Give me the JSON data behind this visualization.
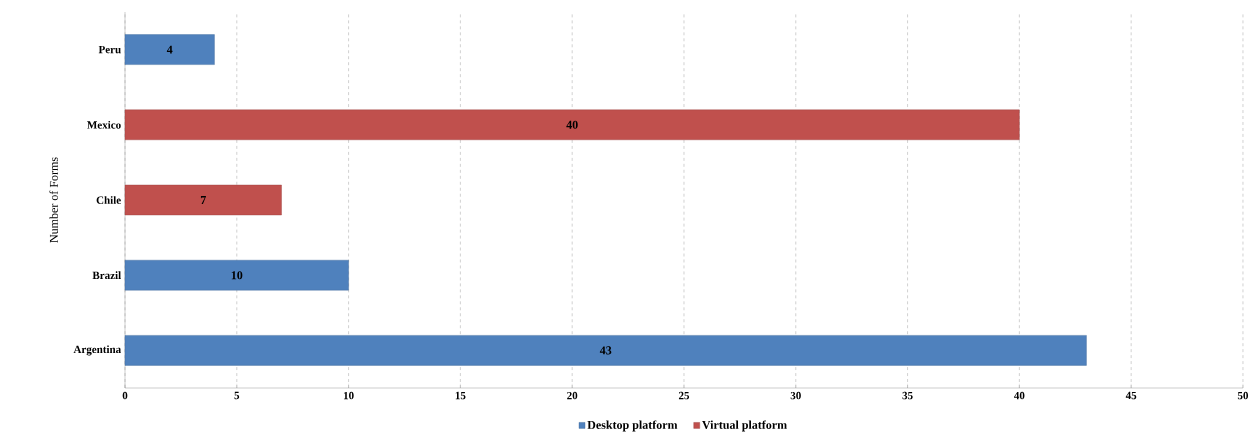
{
  "chart_data": {
    "type": "bar",
    "orientation": "horizontal",
    "ylabel": "Number of Forms",
    "categories": [
      "Peru",
      "Mexico",
      "Chile",
      "Brazil",
      "Argentina"
    ],
    "series": [
      {
        "name": "Desktop platform",
        "color": "#4f81bd",
        "values": [
          4,
          null,
          null,
          10,
          43
        ]
      },
      {
        "name": "Virtual platform",
        "color": "#c0504d",
        "values": [
          null,
          40,
          7,
          null,
          null
        ]
      }
    ],
    "xlim": [
      0,
      50
    ],
    "xticks": [
      0,
      5,
      10,
      15,
      20,
      25,
      30,
      35,
      40,
      45,
      50
    ],
    "grid": "x",
    "legend": "bottom",
    "data_labels": true
  }
}
